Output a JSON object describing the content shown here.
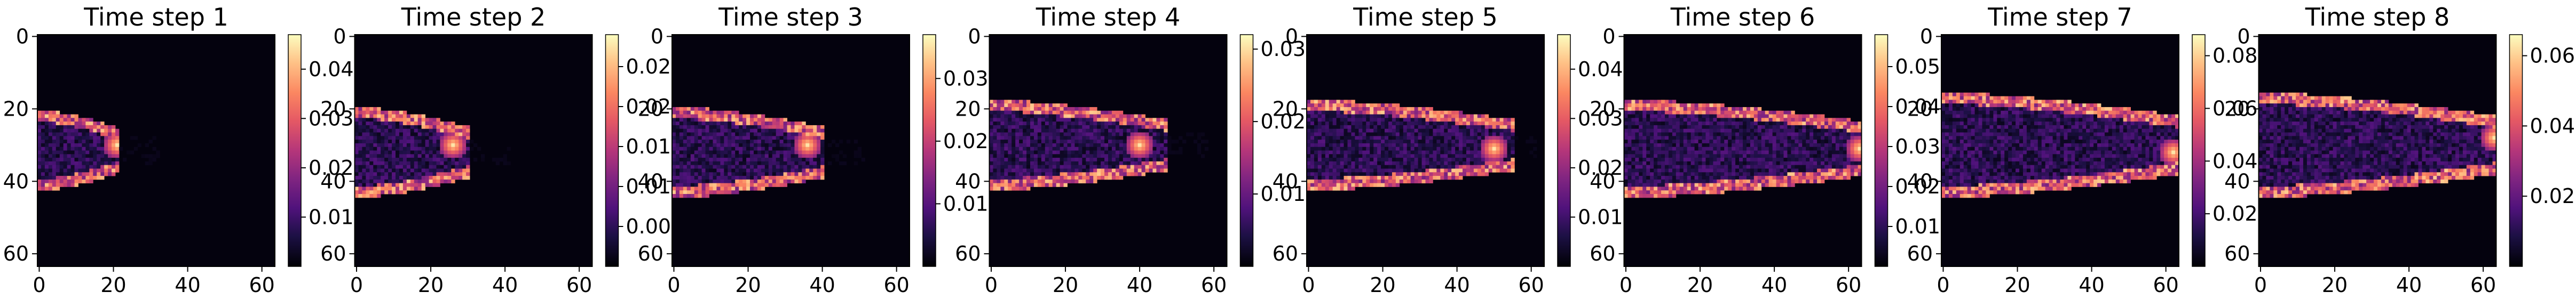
{
  "chart_data": [
    {
      "type": "heatmap",
      "title": "Time step 1",
      "xticks": [
        "0",
        "20",
        "40",
        "60"
      ],
      "yticks": [
        "0",
        "20",
        "40",
        "60"
      ],
      "xlim": [
        0,
        64
      ],
      "ylim": [
        64,
        0
      ],
      "colormap": "magma",
      "colorbar_ticks": [
        "0.01",
        "0.02",
        "0.03",
        "0.04"
      ],
      "colorbar_range": [
        0,
        0.047
      ],
      "structure": {
        "x_extent": [
          0,
          21
        ],
        "y_extent": [
          23,
          40
        ],
        "peak": [
          21,
          30
        ]
      }
    },
    {
      "type": "heatmap",
      "title": "Time step 2",
      "xticks": [
        "0",
        "20",
        "40",
        "60"
      ],
      "yticks": [
        "0",
        "20",
        "40",
        "60"
      ],
      "xlim": [
        0,
        64
      ],
      "ylim": [
        64,
        0
      ],
      "colormap": "magma",
      "colorbar_ticks": [
        "0.005",
        "0.010",
        "0.015",
        "0.020",
        "0.025"
      ],
      "colorbar_range": [
        0,
        0.029
      ],
      "structure": {
        "x_extent": [
          0,
          30
        ],
        "y_extent": [
          22,
          42
        ],
        "peak": [
          26,
          30
        ]
      }
    },
    {
      "type": "heatmap",
      "title": "Time step 3",
      "xticks": [
        "0",
        "20",
        "40",
        "60"
      ],
      "yticks": [
        "0",
        "20",
        "40",
        "60"
      ],
      "xlim": [
        0,
        64
      ],
      "ylim": [
        64,
        0
      ],
      "colormap": "magma",
      "colorbar_ticks": [
        "0.01",
        "0.02",
        "0.03"
      ],
      "colorbar_range": [
        0,
        0.037
      ],
      "structure": {
        "x_extent": [
          0,
          40
        ],
        "y_extent": [
          22,
          42
        ],
        "peak": [
          36,
          30
        ]
      }
    },
    {
      "type": "heatmap",
      "title": "Time step 4",
      "xticks": [
        "0",
        "20",
        "40",
        "60"
      ],
      "yticks": [
        "0",
        "20",
        "40",
        "60"
      ],
      "xlim": [
        0,
        64
      ],
      "ylim": [
        64,
        0
      ],
      "colormap": "magma",
      "colorbar_ticks": [
        "0.01",
        "0.02",
        "0.03"
      ],
      "colorbar_range": [
        0,
        0.032
      ],
      "structure": {
        "x_extent": [
          0,
          47
        ],
        "y_extent": [
          20,
          40
        ],
        "peak": [
          40,
          30
        ]
      }
    },
    {
      "type": "heatmap",
      "title": "Time step 5",
      "xticks": [
        "0",
        "20",
        "40",
        "60"
      ],
      "yticks": [
        "0",
        "20",
        "40",
        "60"
      ],
      "xlim": [
        0,
        64
      ],
      "ylim": [
        64,
        0
      ],
      "colormap": "magma",
      "colorbar_ticks": [
        "0.01",
        "0.02",
        "0.03",
        "0.04"
      ],
      "colorbar_range": [
        0,
        0.047
      ],
      "structure": {
        "x_extent": [
          0,
          55
        ],
        "y_extent": [
          20,
          40
        ],
        "peak": [
          50,
          31
        ]
      }
    },
    {
      "type": "heatmap",
      "title": "Time step 6",
      "xticks": [
        "0",
        "20",
        "40",
        "60"
      ],
      "yticks": [
        "0",
        "20",
        "40",
        "60"
      ],
      "xlim": [
        0,
        64
      ],
      "ylim": [
        64,
        0
      ],
      "colormap": "magma",
      "colorbar_ticks": [
        "0.01",
        "0.02",
        "0.03",
        "0.04",
        "0.05"
      ],
      "colorbar_range": [
        0,
        0.058
      ],
      "structure": {
        "x_extent": [
          0,
          64
        ],
        "y_extent": [
          20,
          42
        ],
        "peak": [
          63,
          31
        ]
      }
    },
    {
      "type": "heatmap",
      "title": "Time step 7",
      "xticks": [
        "0",
        "20",
        "40",
        "60"
      ],
      "yticks": [
        "0",
        "20",
        "40",
        "60"
      ],
      "xlim": [
        0,
        64
      ],
      "ylim": [
        64,
        0
      ],
      "colormap": "magma",
      "colorbar_ticks": [
        "0.02",
        "0.04",
        "0.06",
        "0.08"
      ],
      "colorbar_range": [
        0,
        0.088
      ],
      "structure": {
        "x_extent": [
          0,
          64
        ],
        "y_extent": [
          18,
          42
        ],
        "peak": [
          62,
          32
        ]
      }
    },
    {
      "type": "heatmap",
      "title": "Time step 8",
      "xticks": [
        "0",
        "20",
        "40",
        "60"
      ],
      "yticks": [
        "0",
        "20",
        "40",
        "60"
      ],
      "xlim": [
        0,
        64
      ],
      "ylim": [
        64,
        0
      ],
      "colormap": "magma",
      "colorbar_ticks": [
        "0.02",
        "0.04",
        "0.06"
      ],
      "colorbar_range": [
        0,
        0.066
      ],
      "structure": {
        "x_extent": [
          0,
          64
        ],
        "y_extent": [
          18,
          42
        ],
        "peak": [
          63,
          28
        ]
      }
    }
  ]
}
